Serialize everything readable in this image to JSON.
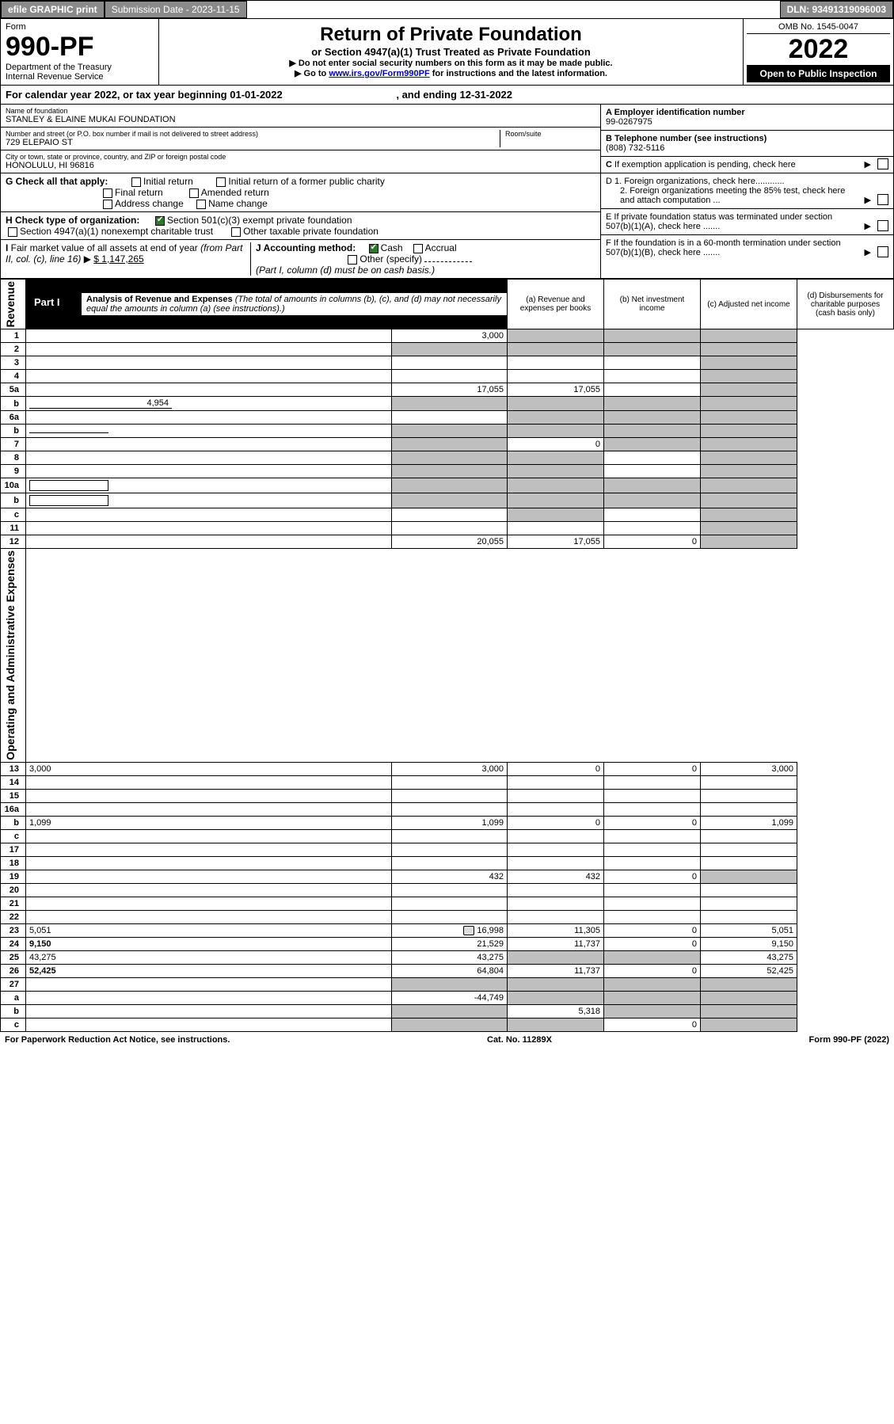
{
  "top": {
    "efile": "efile GRAPHIC print",
    "submission": "Submission Date - 2023-11-15",
    "dln": "DLN: 93491319096003"
  },
  "header": {
    "form_label": "Form",
    "form_no": "990-PF",
    "dept": "Department of the Treasury",
    "irs": "Internal Revenue Service",
    "title": "Return of Private Foundation",
    "subtitle": "or Section 4947(a)(1) Trust Treated as Private Foundation",
    "note1": "▶ Do not enter social security numbers on this form as it may be made public.",
    "note2_pre": "▶ Go to ",
    "note2_link": "www.irs.gov/Form990PF",
    "note2_post": " for instructions and the latest information.",
    "omb": "OMB No. 1545-0047",
    "year": "2022",
    "open": "Open to Public Inspection"
  },
  "calyear": {
    "text_pre": "For calendar year 2022, or tax year beginning ",
    "begin": "01-01-2022",
    "text_mid": " , and ending ",
    "end": "12-31-2022"
  },
  "info": {
    "name_lbl": "Name of foundation",
    "name": "STANLEY & ELAINE MUKAI FOUNDATION",
    "addr_lbl": "Number and street (or P.O. box number if mail is not delivered to street address)",
    "addr": "729 ELEPAIO ST",
    "room_lbl": "Room/suite",
    "city_lbl": "City or town, state or province, country, and ZIP or foreign postal code",
    "city": "HONOLULU, HI  96816",
    "ein_lbl": "A Employer identification number",
    "ein": "99-0267975",
    "tel_lbl": "B Telephone number (see instructions)",
    "tel": "(808) 732-5116",
    "c": "C If exemption application is pending, check here",
    "d1": "D 1. Foreign organizations, check here............",
    "d2": "2. Foreign organizations meeting the 85% test, check here and attach computation ...",
    "e": "E  If private foundation status was terminated under section 507(b)(1)(A), check here .......",
    "f": "F  If the foundation is in a 60-month termination under section 507(b)(1)(B), check here .......",
    "g_lbl": "G Check all that apply:",
    "g1": "Initial return",
    "g2": "Initial return of a former public charity",
    "g3": "Final return",
    "g4": "Amended return",
    "g5": "Address change",
    "g6": "Name change",
    "h_lbl": "H Check type of organization:",
    "h1": "Section 501(c)(3) exempt private foundation",
    "h2": "Section 4947(a)(1) nonexempt charitable trust",
    "h3": "Other taxable private foundation",
    "i_lbl": "I Fair market value of all assets at end of year (from Part II, col. (c), line 16) ▶",
    "i_val": "$  1,147,265",
    "j_lbl": "J Accounting method:",
    "j1": "Cash",
    "j2": "Accrual",
    "j3": "Other (specify)",
    "j_note": "(Part I, column (d) must be on cash basis.)"
  },
  "part1": {
    "tab": "Part I",
    "title": "Analysis of Revenue and Expenses",
    "note": " (The total of amounts in columns (b), (c), and (d) may not necessarily equal the amounts in column (a) (see instructions).)",
    "col_a": "(a)   Revenue and expenses per books",
    "col_b": "(b)   Net investment income",
    "col_c": "(c)   Adjusted net income",
    "col_d": "(d)   Disbursements for charitable purposes (cash basis only)"
  },
  "sections": {
    "revenue": "Revenue",
    "expenses": "Operating and Administrative Expenses"
  },
  "rows": [
    {
      "n": "1",
      "d": "",
      "a": "3,000",
      "b": "",
      "c": "",
      "ga": false,
      "gb": true,
      "gc": true,
      "gd": true
    },
    {
      "n": "2",
      "d": "",
      "a": "",
      "b": "",
      "c": "",
      "ga": true,
      "gb": true,
      "gc": true,
      "gd": true,
      "bold_not": true
    },
    {
      "n": "3",
      "d": "",
      "a": "",
      "b": "",
      "c": "",
      "ga": false,
      "gb": false,
      "gc": false,
      "gd": true
    },
    {
      "n": "4",
      "d": "",
      "a": "",
      "b": "",
      "c": "",
      "ga": false,
      "gb": false,
      "gc": false,
      "gd": true
    },
    {
      "n": "5a",
      "d": "",
      "a": "17,055",
      "b": "17,055",
      "c": "",
      "ga": false,
      "gb": false,
      "gc": false,
      "gd": true
    },
    {
      "n": "b",
      "d": "",
      "a": "",
      "b": "",
      "c": "",
      "inline_val": "4,954",
      "ga": true,
      "gb": true,
      "gc": true,
      "gd": true
    },
    {
      "n": "6a",
      "d": "",
      "a": "",
      "b": "",
      "c": "",
      "ga": false,
      "gb": true,
      "gc": true,
      "gd": true
    },
    {
      "n": "b",
      "d": "",
      "a": "",
      "b": "",
      "c": "",
      "ga": true,
      "gb": true,
      "gc": true,
      "gd": true,
      "underline": true
    },
    {
      "n": "7",
      "d": "",
      "a": "",
      "b": "0",
      "c": "",
      "ga": true,
      "gb": false,
      "gc": true,
      "gd": true
    },
    {
      "n": "8",
      "d": "",
      "a": "",
      "b": "",
      "c": "",
      "ga": true,
      "gb": true,
      "gc": false,
      "gd": true
    },
    {
      "n": "9",
      "d": "",
      "a": "",
      "b": "",
      "c": "",
      "ga": true,
      "gb": true,
      "gc": false,
      "gd": true
    },
    {
      "n": "10a",
      "d": "",
      "a": "",
      "b": "",
      "c": "",
      "ga": true,
      "gb": true,
      "gc": true,
      "gd": true,
      "box": true
    },
    {
      "n": "b",
      "d": "",
      "a": "",
      "b": "",
      "c": "",
      "ga": true,
      "gb": true,
      "gc": true,
      "gd": true,
      "box": true
    },
    {
      "n": "c",
      "d": "",
      "a": "",
      "b": "",
      "c": "",
      "ga": false,
      "gb": true,
      "gc": false,
      "gd": true
    },
    {
      "n": "11",
      "d": "",
      "a": "",
      "b": "",
      "c": "",
      "ga": false,
      "gb": false,
      "gc": false,
      "gd": true
    },
    {
      "n": "12",
      "d": "",
      "a": "20,055",
      "b": "17,055",
      "c": "0",
      "ga": false,
      "gb": false,
      "gc": false,
      "gd": true,
      "bold": true
    },
    {
      "n": "13",
      "d": "3,000",
      "a": "3,000",
      "b": "0",
      "c": "0"
    },
    {
      "n": "14",
      "d": "",
      "a": "",
      "b": "",
      "c": ""
    },
    {
      "n": "15",
      "d": "",
      "a": "",
      "b": "",
      "c": ""
    },
    {
      "n": "16a",
      "d": "",
      "a": "",
      "b": "",
      "c": ""
    },
    {
      "n": "b",
      "d": "1,099",
      "a": "1,099",
      "b": "0",
      "c": "0"
    },
    {
      "n": "c",
      "d": "",
      "a": "",
      "b": "",
      "c": ""
    },
    {
      "n": "17",
      "d": "",
      "a": "",
      "b": "",
      "c": ""
    },
    {
      "n": "18",
      "d": "",
      "a": "",
      "b": "",
      "c": ""
    },
    {
      "n": "19",
      "d": "",
      "a": "432",
      "b": "432",
      "c": "0",
      "gd": true
    },
    {
      "n": "20",
      "d": "",
      "a": "",
      "b": "",
      "c": ""
    },
    {
      "n": "21",
      "d": "",
      "a": "",
      "b": "",
      "c": ""
    },
    {
      "n": "22",
      "d": "",
      "a": "",
      "b": "",
      "c": ""
    },
    {
      "n": "23",
      "d": "5,051",
      "a": "16,998",
      "b": "11,305",
      "c": "0",
      "icon": true
    },
    {
      "n": "24",
      "d": "9,150",
      "a": "21,529",
      "b": "11,737",
      "c": "0",
      "bold": true
    },
    {
      "n": "25",
      "d": "43,275",
      "a": "43,275",
      "b": "",
      "c": "",
      "gb": true,
      "gc": true
    },
    {
      "n": "26",
      "d": "52,425",
      "a": "64,804",
      "b": "11,737",
      "c": "0",
      "bold": true
    },
    {
      "n": "27",
      "d": "",
      "a": "",
      "b": "",
      "c": "",
      "ga": true,
      "gb": true,
      "gc": true,
      "gd": true
    },
    {
      "n": "a",
      "d": "",
      "a": "-44,749",
      "b": "",
      "c": "",
      "bold": true,
      "gb": true,
      "gc": true,
      "gd": true
    },
    {
      "n": "b",
      "d": "",
      "a": "",
      "b": "5,318",
      "c": "",
      "bold": true,
      "ga": true,
      "gc": true,
      "gd": true
    },
    {
      "n": "c",
      "d": "",
      "a": "",
      "b": "",
      "c": "0",
      "bold": true,
      "ga": true,
      "gb": true,
      "gd": true
    }
  ],
  "footer": {
    "left": "For Paperwork Reduction Act Notice, see instructions.",
    "mid": "Cat. No. 11289X",
    "right": "Form 990-PF (2022)"
  },
  "colors": {
    "grey": "#bfbfbf",
    "darkgrey": "#8a8a8a",
    "link": "#0000cc",
    "green": "#2a7a2a"
  }
}
